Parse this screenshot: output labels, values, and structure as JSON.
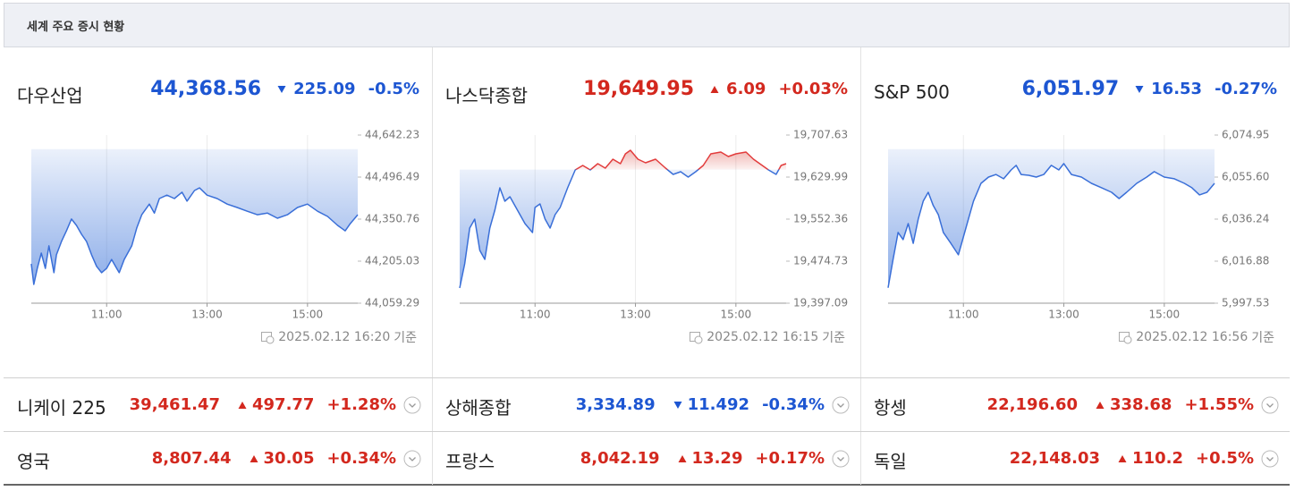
{
  "header": {
    "title": "세계 주요 증시 현황"
  },
  "colors": {
    "up": "#d3281e",
    "down": "#1d56d2"
  },
  "main_indices": [
    {
      "name": "다우산업",
      "price": "44,368.56",
      "change": "225.09",
      "change_pct": "-0.5%",
      "direction": "down",
      "chart": {
        "type": "line",
        "x": [
          9.5,
          9.55,
          9.62,
          9.7,
          9.78,
          9.85,
          9.95,
          10.0,
          10.1,
          10.2,
          10.3,
          10.4,
          10.5,
          10.6,
          10.7,
          10.8,
          10.9,
          11.0,
          11.1,
          11.2,
          11.25,
          11.35,
          11.5,
          11.6,
          11.7,
          11.85,
          11.95,
          12.05,
          12.2,
          12.35,
          12.5,
          12.6,
          12.75,
          12.85,
          13.0,
          13.2,
          13.4,
          13.6,
          13.8,
          14.0,
          14.2,
          14.4,
          14.6,
          14.8,
          15.0,
          15.2,
          15.4,
          15.6,
          15.75,
          15.85,
          16.0
        ],
        "values": [
          44195.8,
          44124.5,
          44180,
          44233,
          44180,
          44258,
          44165,
          44227,
          44273,
          44310,
          44351,
          44329,
          44298,
          44273,
          44227,
          44187,
          44165,
          44180,
          44211,
          44180,
          44165,
          44211,
          44258,
          44320,
          44366,
          44403,
          44372,
          44422,
          44434,
          44422,
          44444,
          44413,
          44450,
          44459,
          44434,
          44422,
          44403,
          44391,
          44378,
          44366,
          44372,
          44354,
          44366,
          44391,
          44403,
          44378,
          44360,
          44329,
          44310,
          44335,
          44366
        ],
        "baseline": 44593.65,
        "xlim": [
          9.5,
          16
        ],
        "xticks": [
          {
            "value": 11,
            "label": "11:00"
          },
          {
            "value": 13,
            "label": "13:00"
          },
          {
            "value": 15,
            "label": "15:00"
          }
        ],
        "ylim": [
          44059.29,
          44642.23
        ],
        "yticks": [
          {
            "value": 44059.29,
            "label": "44,059.29"
          },
          {
            "value": 44205.03,
            "label": "44,205.03"
          },
          {
            "value": 44350.76,
            "label": "44,350.76"
          },
          {
            "value": 44496.49,
            "label": "44,496.49"
          },
          {
            "value": 44642.23,
            "label": "44,642.23"
          }
        ],
        "grid": true
      },
      "updated": "2025.02.12 16:20",
      "updated_suffix": "기준"
    },
    {
      "name": "나스닥종합",
      "price": "19,649.95",
      "change": "6.09",
      "change_pct": "+0.03%",
      "direction": "up",
      "chart": {
        "type": "line",
        "x": [
          9.5,
          9.6,
          9.7,
          9.8,
          9.9,
          10.0,
          10.1,
          10.2,
          10.3,
          10.4,
          10.5,
          10.65,
          10.8,
          10.95,
          11.0,
          11.1,
          11.2,
          11.3,
          11.4,
          11.5,
          11.65,
          11.8,
          11.95,
          12.1,
          12.25,
          12.4,
          12.55,
          12.7,
          12.8,
          12.9,
          13.05,
          13.2,
          13.4,
          13.6,
          13.75,
          13.9,
          14.05,
          14.2,
          14.35,
          14.5,
          14.7,
          14.85,
          15.0,
          15.2,
          15.35,
          15.5,
          15.65,
          15.8,
          15.9,
          16.0
        ],
        "values": [
          19425.1,
          19469.7,
          19535.8,
          19552.3,
          19494.5,
          19478.0,
          19535.8,
          19568.8,
          19610.2,
          19585.4,
          19593.6,
          19568.8,
          19544.1,
          19527.6,
          19573.8,
          19580.4,
          19552.3,
          19535.8,
          19560.6,
          19573.8,
          19610.2,
          19643.2,
          19651.5,
          19643.2,
          19654.7,
          19646.5,
          19663.0,
          19654.7,
          19673.0,
          19679.5,
          19663.0,
          19656.4,
          19663.0,
          19646.5,
          19634.9,
          19639.9,
          19630.0,
          19639.9,
          19651.5,
          19673.0,
          19676.3,
          19668.0,
          19673.0,
          19676.3,
          19663.0,
          19653.1,
          19643.2,
          19634.9,
          19651.5,
          19654.7
        ],
        "baseline": 19643.86,
        "xlim": [
          9.5,
          16
        ],
        "xticks": [
          {
            "value": 11,
            "label": "11:00"
          },
          {
            "value": 13,
            "label": "13:00"
          },
          {
            "value": 15,
            "label": "15:00"
          }
        ],
        "ylim": [
          19397.09,
          19707.63
        ],
        "yticks": [
          {
            "value": 19397.09,
            "label": "19,397.09"
          },
          {
            "value": 19474.73,
            "label": "19,474.73"
          },
          {
            "value": 19552.36,
            "label": "19,552.36"
          },
          {
            "value": 19629.99,
            "label": "19,629.99"
          },
          {
            "value": 19707.63,
            "label": "19,707.63"
          }
        ],
        "grid": true
      },
      "updated": "2025.02.12 16:15",
      "updated_suffix": "기준"
    },
    {
      "name": "S&P 500",
      "price": "6,051.97",
      "change": "16.53",
      "change_pct": "-0.27%",
      "direction": "down",
      "chart": {
        "type": "line",
        "x": [
          9.5,
          9.6,
          9.7,
          9.8,
          9.9,
          10.0,
          10.1,
          10.2,
          10.3,
          10.4,
          10.5,
          10.6,
          10.75,
          10.9,
          11.0,
          11.1,
          11.2,
          11.35,
          11.5,
          11.65,
          11.8,
          11.95,
          12.05,
          12.15,
          12.3,
          12.45,
          12.6,
          12.75,
          12.9,
          13.0,
          13.15,
          13.35,
          13.55,
          13.75,
          13.95,
          14.1,
          14.25,
          14.45,
          14.65,
          14.8,
          15.0,
          15.2,
          15.4,
          15.55,
          15.7,
          15.85,
          16.0
        ],
        "values": [
          6004.6,
          6017.7,
          6030.1,
          6026.8,
          6034.2,
          6025.1,
          6036.2,
          6044.5,
          6048.6,
          6042.5,
          6038.3,
          6030.1,
          6025.1,
          6019.8,
          6028.0,
          6036.2,
          6044.5,
          6052.7,
          6055.6,
          6056.8,
          6054.8,
          6058.9,
          6061.0,
          6056.8,
          6056.4,
          6055.6,
          6056.8,
          6061.0,
          6058.9,
          6061.8,
          6056.8,
          6055.6,
          6052.7,
          6050.7,
          6048.6,
          6045.7,
          6048.6,
          6052.7,
          6055.6,
          6058.1,
          6055.6,
          6054.8,
          6052.7,
          6050.7,
          6047.4,
          6048.6,
          6052.7
        ],
        "baseline": 6068.5,
        "xlim": [
          9.5,
          16
        ],
        "xticks": [
          {
            "value": 11,
            "label": "11:00"
          },
          {
            "value": 13,
            "label": "13:00"
          },
          {
            "value": 15,
            "label": "15:00"
          }
        ],
        "ylim": [
          5997.53,
          6074.95
        ],
        "yticks": [
          {
            "value": 5997.53,
            "label": "5,997.53"
          },
          {
            "value": 6016.88,
            "label": "6,016.88"
          },
          {
            "value": 6036.24,
            "label": "6,036.24"
          },
          {
            "value": 6055.6,
            "label": "6,055.60"
          },
          {
            "value": 6074.95,
            "label": "6,074.95"
          }
        ],
        "grid": true
      },
      "updated": "2025.02.12 16:56",
      "updated_suffix": "기준"
    }
  ],
  "other_indices": [
    {
      "name": "니케이 225",
      "price": "39,461.47",
      "change": "497.77",
      "change_pct": "+1.28%",
      "direction": "up"
    },
    {
      "name": "상해종합",
      "price": "3,334.89",
      "change": "11.492",
      "change_pct": "-0.34%",
      "direction": "down"
    },
    {
      "name": "항셍",
      "price": "22,196.60",
      "change": "338.68",
      "change_pct": "+1.55%",
      "direction": "up"
    },
    {
      "name": "영국",
      "price": "8,807.44",
      "change": "30.05",
      "change_pct": "+0.34%",
      "direction": "up"
    },
    {
      "name": "프랑스",
      "price": "8,042.19",
      "change": "13.29",
      "change_pct": "+0.17%",
      "direction": "up"
    },
    {
      "name": "독일",
      "price": "22,148.03",
      "change": "110.2",
      "change_pct": "+0.5%",
      "direction": "up"
    }
  ]
}
